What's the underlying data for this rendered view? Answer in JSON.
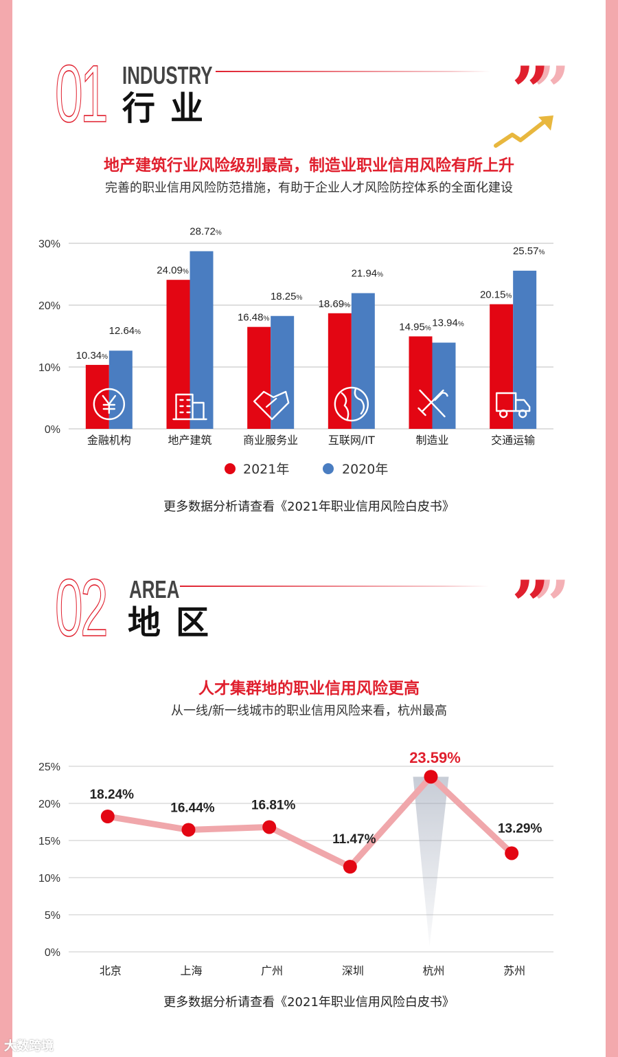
{
  "section1": {
    "number": "01",
    "en_title": "INDUSTRY",
    "cn_title": "行业",
    "headline": "地产建筑行业风险级别最高，制造业职业信用风险有所上升",
    "subline": "完善的职业信用风险防范措施，有助于企业人才风险防控体系的全面化建设",
    "footnote": "更多数据分析请查看《2021年职业信用风险白皮书》"
  },
  "section2": {
    "number": "02",
    "en_title": "AREA",
    "cn_title": "地区",
    "headline": "人才集群地的职业信用风险更高",
    "subline": "从一线/新一线城市的职业信用风险来看，杭州最高",
    "footnote": "更多数据分析请查看《2021年职业信用风险白皮书》"
  },
  "quote_mark": "”",
  "logo_text": "大数跨境",
  "colors": {
    "accent": "#e0202e",
    "series_2021": "#e30613",
    "series_2020": "#4a7dc1",
    "line": "#f0a7ab",
    "marker": "#e30613"
  },
  "chart_data": [
    {
      "type": "bar",
      "categories": [
        "金融机构",
        "地产建筑",
        "商业服务业",
        "互联网/IT",
        "制造业",
        "交通运输"
      ],
      "category_icons": [
        "yen-icon",
        "building-icon",
        "handshake-icon",
        "globe-icon",
        "tools-icon",
        "truck-icon"
      ],
      "series": [
        {
          "name": "2021年",
          "values": [
            10.34,
            24.09,
            16.48,
            18.69,
            14.95,
            20.15
          ],
          "labels": [
            "10.34",
            "24.09",
            "16.48",
            "18.69",
            "14.95",
            "20.15"
          ]
        },
        {
          "name": "2020年",
          "values": [
            12.64,
            28.72,
            18.25,
            21.94,
            13.94,
            25.57
          ],
          "labels": [
            "12.64",
            "28.72",
            "18.25",
            "21.94",
            "13.94",
            "25.57"
          ]
        }
      ],
      "label_suffix": "%",
      "yticks": [
        "0%",
        "10%",
        "20%",
        "30%"
      ],
      "ylim": [
        0,
        30
      ],
      "grid": true,
      "legend": "bottom"
    },
    {
      "type": "line",
      "categories": [
        "北京",
        "上海",
        "广州",
        "深圳",
        "杭州",
        "苏州"
      ],
      "values": [
        18.24,
        16.44,
        16.81,
        11.47,
        23.59,
        13.29
      ],
      "labels": [
        "18.24%",
        "16.44%",
        "16.81%",
        "11.47%",
        "23.59%",
        "13.29%"
      ],
      "highlight": "杭州",
      "yticks": [
        "0%",
        "5%",
        "10%",
        "15%",
        "20%",
        "25%"
      ],
      "ylim": [
        0,
        25
      ],
      "grid": true
    }
  ]
}
